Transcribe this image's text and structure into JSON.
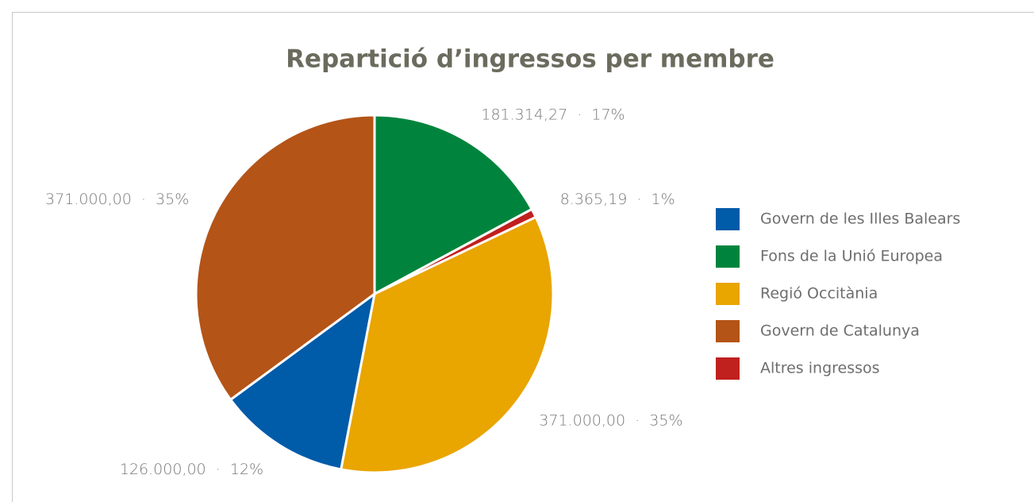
{
  "chart_data": {
    "type": "pie",
    "title": "Repartició d’ingressos per membre",
    "categories": [
      "Govern de les Illes Balears",
      "Fons de la Unió Europea",
      "Regió Occitània",
      "Govern de Catalunya",
      "Altres ingressos"
    ],
    "values": [
      126000,
      181314.27,
      371000,
      371000,
      8365.19
    ],
    "value_labels": [
      "126.000,00  ·  12%",
      "181.314,27  ·  17%",
      "371.000,00  ·  35%",
      "371.000,00  ·  35%",
      "8.365,19  ·  1%"
    ],
    "colors": [
      "#005ba9",
      "#00843d",
      "#e9a500",
      "#b45417",
      "#c0201e"
    ],
    "slice_order": [
      1,
      4,
      2,
      0,
      3
    ],
    "legend": "right"
  }
}
